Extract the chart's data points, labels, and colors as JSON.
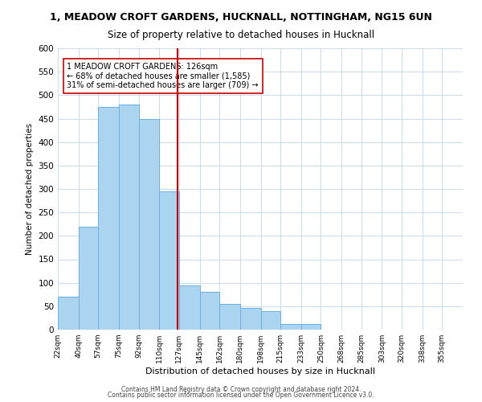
{
  "title": "1, MEADOW CROFT GARDENS, HUCKNALL, NOTTINGHAM, NG15 6UN",
  "subtitle": "Size of property relative to detached houses in Hucknall",
  "xlabel": "Distribution of detached houses by size in Hucknall",
  "ylabel": "Number of detached properties",
  "bar_edges": [
    22,
    40,
    57,
    75,
    92,
    110,
    127,
    145,
    162,
    180,
    198,
    215,
    233,
    250,
    268,
    285,
    303,
    320,
    338,
    355,
    373
  ],
  "bar_heights": [
    70,
    220,
    475,
    480,
    450,
    295,
    95,
    80,
    55,
    46,
    40,
    12,
    12,
    0,
    0,
    0,
    0,
    0,
    0,
    0
  ],
  "bar_color": "#aad4f0",
  "bar_edge_color": "#6ab0e0",
  "property_line_x": 126,
  "property_line_color": "#cc0000",
  "annotation_box_text": "1 MEADOW CROFT GARDENS: 126sqm\n← 68% of detached houses are smaller (1,585)\n31% of semi-detached houses are larger (709) →",
  "annotation_box_edge_color": "#cc0000",
  "ylim": [
    0,
    600
  ],
  "yticks": [
    0,
    50,
    100,
    150,
    200,
    250,
    300,
    350,
    400,
    450,
    500,
    550,
    600
  ],
  "footer_line1": "Contains HM Land Registry data © Crown copyright and database right 2024.",
  "footer_line2": "Contains public sector information licensed under the Open Government Licence v3.0.",
  "background_color": "#ffffff",
  "grid_color": "#ccddee"
}
